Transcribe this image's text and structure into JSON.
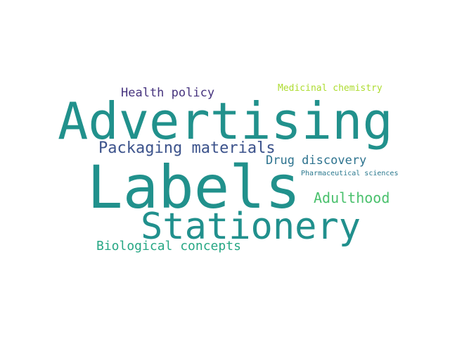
{
  "words": [
    {
      "key": "advertising",
      "text": "Advertising",
      "color": "#21918c"
    },
    {
      "key": "labels",
      "text": "Labels",
      "color": "#21918c"
    },
    {
      "key": "stationery",
      "text": "Stationery",
      "color": "#21908d"
    },
    {
      "key": "packaging",
      "text": "Packaging materials",
      "color": "#3b528b"
    },
    {
      "key": "health",
      "text": "Health policy",
      "color": "#46337e"
    },
    {
      "key": "medicinal",
      "text": "Medicinal chemistry",
      "color": "#addc30"
    },
    {
      "key": "drug",
      "text": "Drug discovery",
      "color": "#2c728e"
    },
    {
      "key": "pharma",
      "text": "Pharmaceutical sciences",
      "color": "#2a788e"
    },
    {
      "key": "adulthood",
      "text": "Adulthood",
      "color": "#4ac16d"
    },
    {
      "key": "bio",
      "text": "Biological concepts",
      "color": "#26a784"
    }
  ]
}
